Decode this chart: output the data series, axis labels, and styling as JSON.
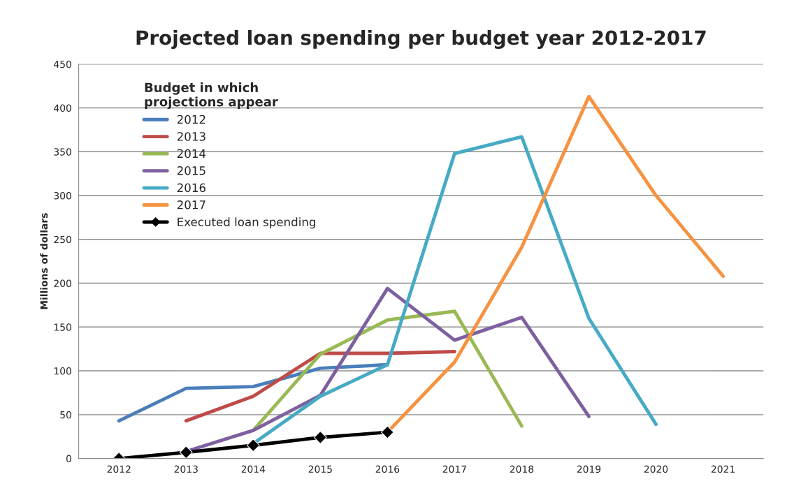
{
  "chart_data": {
    "type": "line",
    "title": "Projected loan spending per budget year 2012-2017",
    "ylabel": "Millions of dollars",
    "legend_title": "Budget in which\nprojections appear",
    "categories": [
      "2012",
      "2013",
      "2014",
      "2015",
      "2016",
      "2017",
      "2018",
      "2019",
      "2020",
      "2021"
    ],
    "series": [
      {
        "name": "2012",
        "color": "#4a7ebb",
        "values": [
          43,
          80,
          82,
          103,
          107,
          null,
          null,
          null,
          null,
          null
        ]
      },
      {
        "name": "2013",
        "color": "#be4b48",
        "values": [
          null,
          43,
          71,
          120,
          120,
          122,
          null,
          null,
          null,
          null
        ]
      },
      {
        "name": "2014",
        "color": "#98b954",
        "values": [
          null,
          null,
          32,
          119,
          158,
          168,
          37,
          null,
          null,
          null
        ]
      },
      {
        "name": "2015",
        "color": "#7d60a0",
        "values": [
          null,
          8,
          32,
          72,
          194,
          135,
          161,
          48,
          null,
          null
        ]
      },
      {
        "name": "2016",
        "color": "#46aac5",
        "values": [
          null,
          null,
          17,
          71,
          107,
          348,
          367,
          160,
          39,
          null
        ]
      },
      {
        "name": "2017",
        "color": "#f69240",
        "values": [
          null,
          null,
          null,
          null,
          30,
          110,
          241,
          413,
          300,
          208
        ]
      },
      {
        "name": "Executed loan spending",
        "color": "#000000",
        "marker": "diamond",
        "values": [
          0,
          7,
          15,
          24,
          30,
          null,
          null,
          null,
          null,
          null
        ]
      }
    ],
    "ylim": [
      0,
      450
    ],
    "yticks": [
      0,
      50,
      100,
      150,
      200,
      250,
      300,
      350,
      400,
      450
    ],
    "grid": "y",
    "legend": "top left",
    "line_style": "solid"
  }
}
